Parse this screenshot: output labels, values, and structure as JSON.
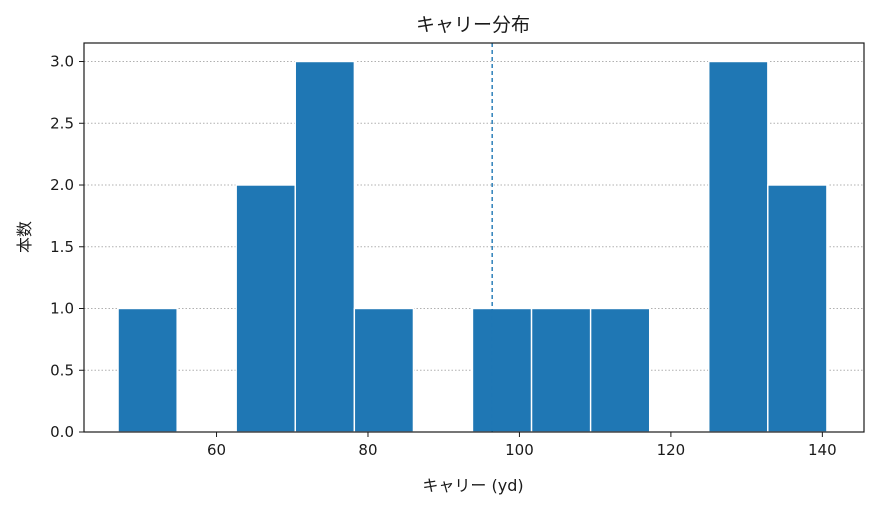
{
  "chart_data": {
    "type": "bar",
    "title": "キャリー分布",
    "xlabel": "キャリー (yd)",
    "ylabel": "本数",
    "xlim": [
      42.5,
      145.5
    ],
    "ylim": [
      0,
      3.15
    ],
    "xticks": [
      60,
      80,
      100,
      120,
      140
    ],
    "xtick_labels": [
      "60",
      "80",
      "100",
      "120",
      "140"
    ],
    "yticks": [
      0,
      0.5,
      1,
      1.5,
      2,
      2.5,
      3
    ],
    "ytick_labels": [
      "0.0",
      "0.5",
      "1.0",
      "1.5",
      "2.0",
      "2.5",
      "3.0"
    ],
    "grid": "y-dotted",
    "bins": [
      {
        "start": 47.0,
        "end": 54.8,
        "count": 1
      },
      {
        "start": 54.8,
        "end": 62.6,
        "count": 0
      },
      {
        "start": 62.6,
        "end": 70.4,
        "count": 2
      },
      {
        "start": 70.4,
        "end": 78.2,
        "count": 3
      },
      {
        "start": 78.2,
        "end": 86.0,
        "count": 1
      },
      {
        "start": 86.0,
        "end": 93.8,
        "count": 0
      },
      {
        "start": 93.8,
        "end": 101.6,
        "count": 1
      },
      {
        "start": 101.6,
        "end": 109.4,
        "count": 1
      },
      {
        "start": 109.4,
        "end": 117.2,
        "count": 1
      },
      {
        "start": 117.2,
        "end": 125.0,
        "count": 0
      },
      {
        "start": 125.0,
        "end": 132.8,
        "count": 3
      },
      {
        "start": 132.8,
        "end": 140.6,
        "count": 2
      }
    ],
    "mean_line": 96.4,
    "bar_color": "#1f77b4",
    "mean_line_color": "#1f77b4"
  }
}
